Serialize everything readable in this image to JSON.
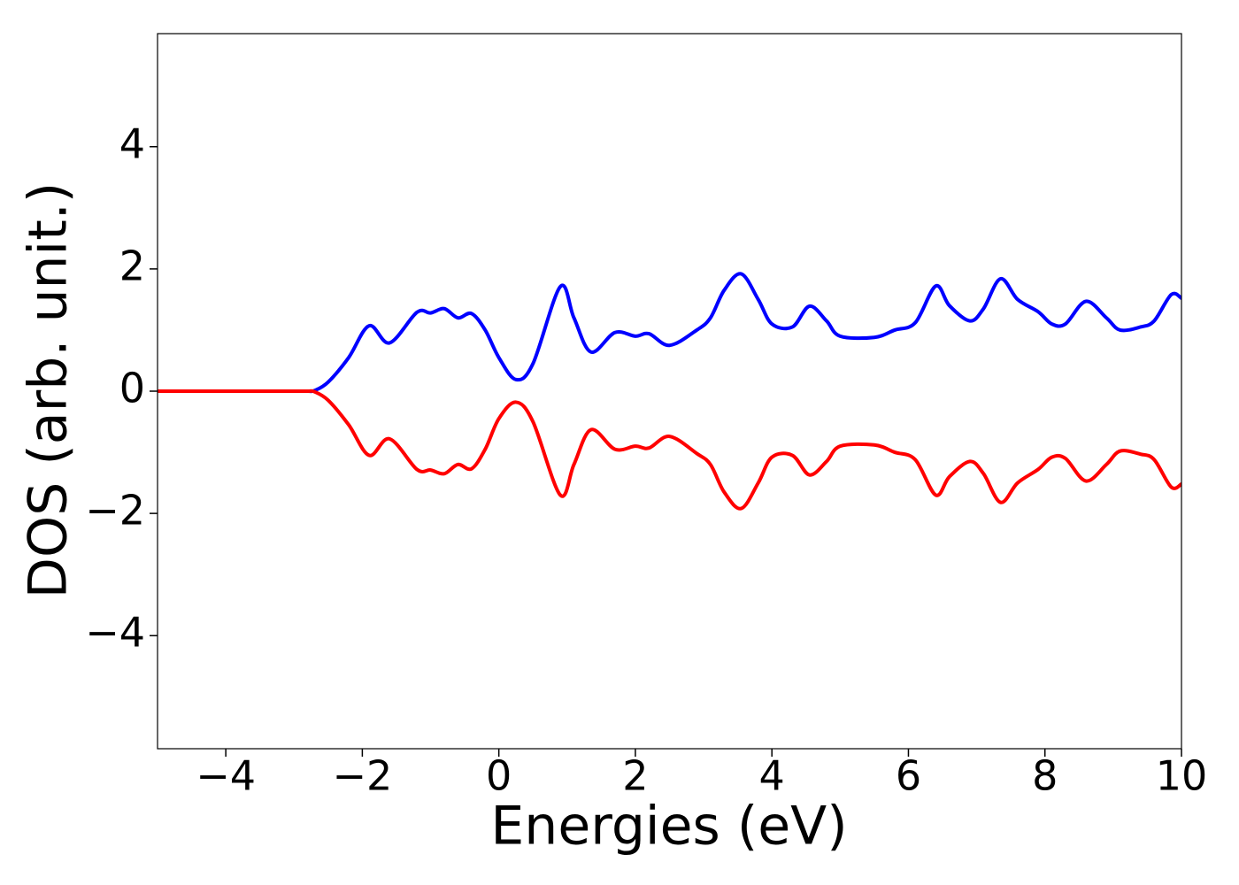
{
  "chart_data": {
    "type": "line",
    "xlabel": "Energies (eV)",
    "ylabel": "DOS (arb. unit.)",
    "xlim": [
      -5,
      10
    ],
    "ylim": [
      -5.85,
      5.85
    ],
    "xticks": [
      {
        "value": -4,
        "label": "−4"
      },
      {
        "value": -2,
        "label": "−2"
      },
      0,
      2,
      4,
      6,
      8,
      10
    ],
    "yticks": [
      {
        "value": -4,
        "label": "−4"
      },
      {
        "value": -2,
        "label": "−2"
      },
      0,
      2,
      4
    ],
    "x": [
      -5,
      -4,
      -3,
      -2.8,
      -2.7,
      -2.5,
      -2.2,
      -1.9,
      -1.6,
      -1.2,
      -1.0,
      -0.8,
      -0.6,
      -0.4,
      -0.2,
      0.0,
      0.25,
      0.5,
      0.9,
      1.1,
      1.35,
      1.7,
      2.0,
      2.2,
      2.5,
      2.9,
      3.1,
      3.3,
      3.55,
      3.8,
      4.0,
      4.3,
      4.55,
      4.8,
      5.0,
      5.5,
      5.8,
      6.1,
      6.4,
      6.6,
      6.9,
      7.1,
      7.35,
      7.6,
      7.9,
      8.1,
      8.3,
      8.6,
      8.9,
      9.1,
      9.4,
      9.6,
      9.85,
      10
    ],
    "series": [
      {
        "color": "#0000ff",
        "values": [
          0,
          0,
          0,
          0,
          0.01,
          0.15,
          0.55,
          1.07,
          0.79,
          1.29,
          1.28,
          1.35,
          1.2,
          1.27,
          1.0,
          0.55,
          0.19,
          0.45,
          1.71,
          1.2,
          0.64,
          0.96,
          0.9,
          0.94,
          0.75,
          1.0,
          1.2,
          1.65,
          1.92,
          1.5,
          1.1,
          1.05,
          1.39,
          1.15,
          0.9,
          0.88,
          1.0,
          1.12,
          1.72,
          1.4,
          1.15,
          1.35,
          1.84,
          1.5,
          1.3,
          1.1,
          1.1,
          1.47,
          1.2,
          1.0,
          1.05,
          1.15,
          1.58,
          1.52
        ]
      },
      {
        "color": "#ff0000",
        "values": [
          0,
          0,
          0,
          0,
          -0.01,
          -0.15,
          -0.55,
          -1.05,
          -0.78,
          -1.28,
          -1.29,
          -1.35,
          -1.2,
          -1.27,
          -0.95,
          -0.45,
          -0.18,
          -0.5,
          -1.7,
          -1.2,
          -0.63,
          -0.95,
          -0.9,
          -0.93,
          -0.74,
          -1.02,
          -1.2,
          -1.65,
          -1.92,
          -1.5,
          -1.08,
          -1.05,
          -1.37,
          -1.15,
          -0.9,
          -0.88,
          -1.0,
          -1.12,
          -1.7,
          -1.4,
          -1.15,
          -1.35,
          -1.82,
          -1.5,
          -1.28,
          -1.08,
          -1.1,
          -1.47,
          -1.2,
          -0.98,
          -1.03,
          -1.12,
          -1.57,
          -1.52
        ]
      }
    ]
  }
}
